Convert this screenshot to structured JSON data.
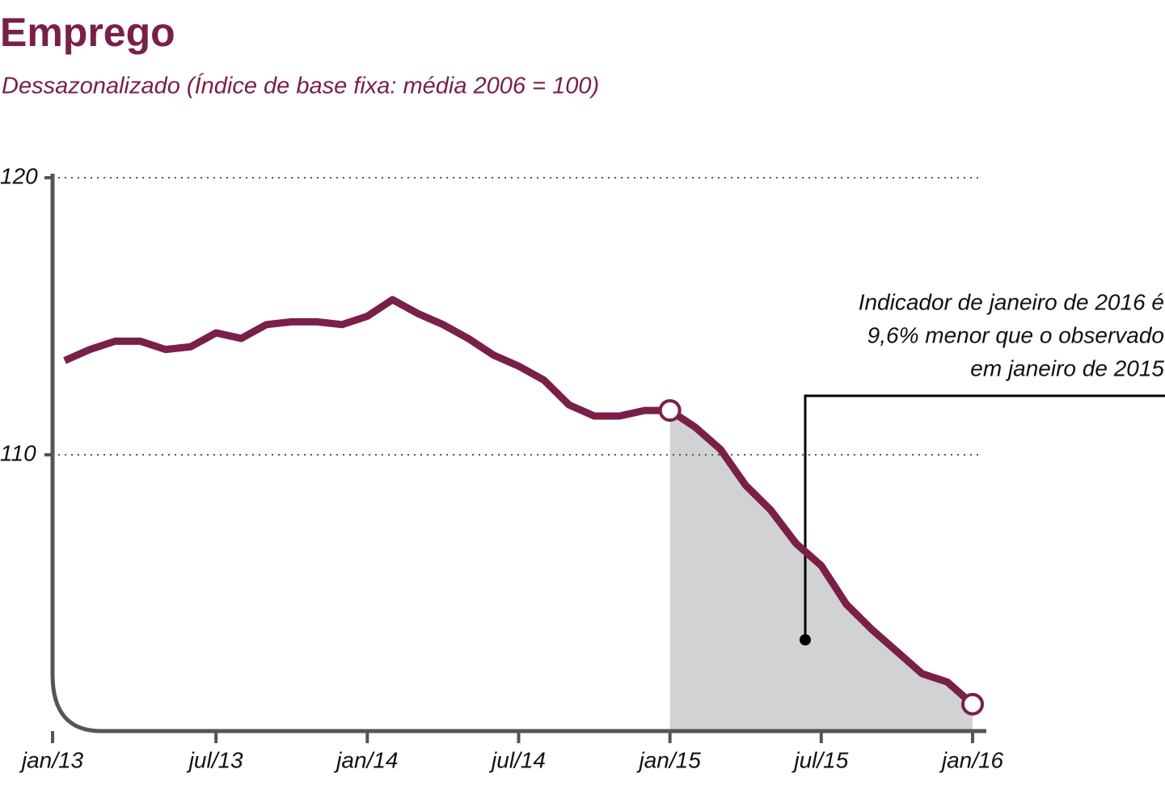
{
  "chart_data": {
    "type": "line",
    "title": "Emprego",
    "subtitle": "Dessazonalizado (Índice de base fixa: média 2006 = 100)",
    "annotation": [
      "Indicador de janeiro de 2016 é",
      "9,6% menor que o observado",
      "em janeiro de 2015"
    ],
    "categories": [
      "jan/13",
      null,
      null,
      null,
      null,
      null,
      "jul/13",
      null,
      null,
      null,
      null,
      null,
      "jan/14",
      null,
      null,
      null,
      null,
      null,
      "jul/14",
      null,
      null,
      null,
      null,
      null,
      "jan/15",
      null,
      null,
      null,
      null,
      null,
      "jul/15",
      null,
      null,
      null,
      null,
      null,
      "jan/16"
    ],
    "values": [
      113.4,
      113.8,
      114.1,
      114.1,
      113.8,
      113.9,
      114.4,
      114.2,
      114.7,
      114.8,
      114.8,
      114.7,
      115.0,
      115.6,
      115.1,
      114.7,
      114.2,
      113.6,
      113.2,
      112.7,
      111.8,
      111.4,
      111.4,
      111.6,
      111.6,
      111.0,
      110.2,
      108.9,
      108.0,
      106.8,
      106.0,
      104.6,
      103.7,
      102.9,
      102.1,
      101.8,
      101.0
    ],
    "color": "#7a2048",
    "highlight": {
      "from": "jan/15",
      "to": "jan/16",
      "color": "#d1d2d4"
    },
    "ylim": [
      100,
      120
    ],
    "yticks": [
      110,
      120
    ],
    "grid": true
  }
}
